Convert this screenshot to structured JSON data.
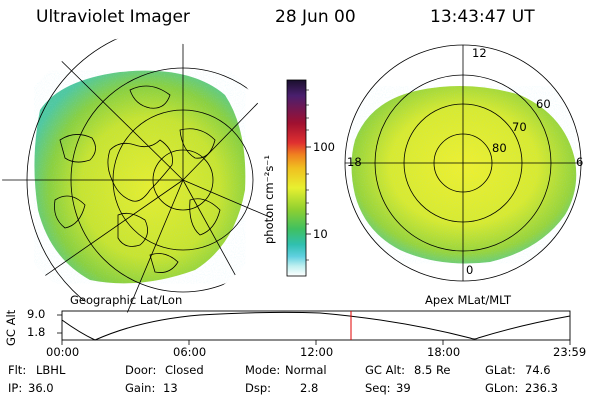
{
  "header": {
    "instrument": "Ultraviolet Imager",
    "date": "28 Jun 00",
    "time": "13:43:47 UT"
  },
  "left_map": {
    "label": "Geographic Lat/Lon"
  },
  "right_map": {
    "label": "Apex MLat/MLT",
    "mlt_labels": [
      "12",
      "18",
      "6",
      "0"
    ],
    "lat_labels": [
      "60",
      "70",
      "80"
    ]
  },
  "colorbar": {
    "unit_label": "photon cm⁻²s⁻¹",
    "ticks": [
      "100",
      "10"
    ],
    "scale": "log",
    "colors": [
      "#1a0f2e",
      "#4a1f6e",
      "#a01030",
      "#e03030",
      "#f08020",
      "#f0c020",
      "#e8f030",
      "#90d030",
      "#40c060",
      "#30c0b0",
      "#60d0e0",
      "#c0f0f0",
      "#ffffff"
    ]
  },
  "altitude_plot": {
    "ylabel": "GC Alt",
    "y_ticks": [
      "9.0",
      "1.8"
    ],
    "x_ticks": [
      "00:00",
      "06:00",
      "12:00",
      "18:00",
      "23:59"
    ],
    "marker_time": "13:43"
  },
  "status": {
    "row1": [
      {
        "label": "Flt:",
        "value": "LBHL"
      },
      {
        "label": "Door:",
        "value": "Closed"
      },
      {
        "label": "Mode:",
        "value": "Normal"
      },
      {
        "label": "GC Alt:",
        "value": "8.5 Re"
      },
      {
        "label": "GLat:",
        "value": "74.6"
      }
    ],
    "row2": [
      {
        "label": "IP:",
        "value": "36.0"
      },
      {
        "label": "Gain:",
        "value": "13"
      },
      {
        "label": "Dsp:",
        "value": "2.8"
      },
      {
        "label": "Seq:",
        "value": "39"
      },
      {
        "label": "GLon:",
        "value": "236.3"
      }
    ]
  }
}
